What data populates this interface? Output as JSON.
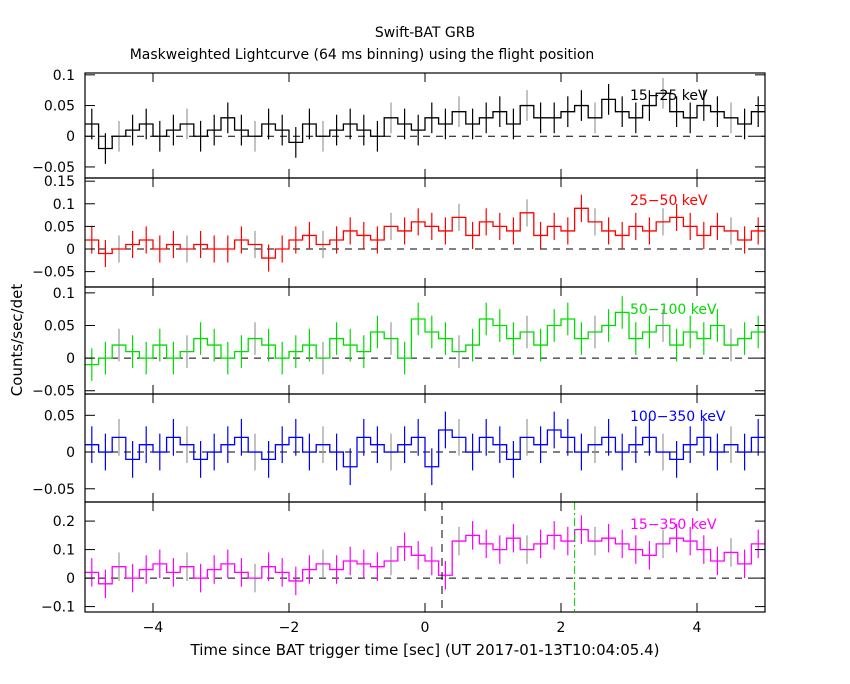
{
  "chart_data": {
    "type": "line",
    "title": "Swift-BAT GRB",
    "subtitle": "Maskweighted Lightcurve (64 ms binning) using the flight position",
    "xlabel": "Time since BAT trigger time [sec] (UT 2017-01-13T10:04:05.4)",
    "ylabel": "Counts/sec/det",
    "xlim": [
      -5,
      5
    ],
    "xticks": [
      -4,
      -2,
      0,
      2,
      4
    ],
    "xtick_labels": [
      "−4",
      "−2",
      "0",
      "2",
      "4"
    ],
    "bin_width": 0.2,
    "markers": [
      {
        "name": "dashed",
        "x": 0.25,
        "color": "#000000"
      },
      {
        "name": "dash-dot",
        "x": 2.2,
        "color": "#00cc00"
      }
    ],
    "panels": [
      {
        "label": "15−25 keV",
        "color": "#000000",
        "ylim": [
          -0.068,
          0.103
        ],
        "yticks": [
          0.1,
          0.05,
          0,
          -0.05
        ],
        "ytick_labels": [
          "0.1",
          "0.05",
          "0",
          "−0.05"
        ],
        "err": 0.025,
        "values": [
          0.02,
          -0.02,
          0.0,
          0.01,
          0.02,
          0.0,
          0.01,
          0.02,
          0.0,
          0.01,
          0.03,
          0.01,
          0.0,
          0.02,
          0.01,
          -0.01,
          0.02,
          0.0,
          0.01,
          0.02,
          0.01,
          0.0,
          0.03,
          0.02,
          0.01,
          0.03,
          0.02,
          0.04,
          0.02,
          0.03,
          0.04,
          0.02,
          0.05,
          0.03,
          0.03,
          0.04,
          0.05,
          0.03,
          0.06,
          0.04,
          0.03,
          0.05,
          0.07,
          0.04,
          0.03,
          0.05,
          0.04,
          0.03,
          0.02,
          0.04
        ]
      },
      {
        "label": "25−50 keV",
        "color": "#ff0000",
        "ylim": [
          -0.084,
          0.157
        ],
        "yticks": [
          0.15,
          0.1,
          0.05,
          0,
          -0.05
        ],
        "ytick_labels": [
          "0.15",
          "0.1",
          "0.05",
          "0",
          "−0.05"
        ],
        "err": 0.03,
        "values": [
          0.02,
          -0.01,
          0.0,
          0.01,
          0.02,
          0.0,
          0.01,
          0.0,
          0.01,
          0.0,
          0.0,
          0.02,
          0.01,
          -0.02,
          0.0,
          0.02,
          0.03,
          0.01,
          0.02,
          0.04,
          0.03,
          0.02,
          0.05,
          0.04,
          0.06,
          0.05,
          0.04,
          0.07,
          0.03,
          0.06,
          0.05,
          0.04,
          0.08,
          0.03,
          0.05,
          0.04,
          0.09,
          0.06,
          0.04,
          0.03,
          0.05,
          0.04,
          0.06,
          0.07,
          0.05,
          0.03,
          0.05,
          0.04,
          0.02,
          0.04
        ]
      },
      {
        "label": "50−100 keV",
        "color": "#00dd00",
        "ylim": [
          -0.055,
          0.109
        ],
        "yticks": [
          0.1,
          0.05,
          0,
          -0.05
        ],
        "ytick_labels": [
          "0.1",
          "0.05",
          "0",
          "−0.05"
        ],
        "err": 0.025,
        "values": [
          -0.01,
          0.0,
          0.02,
          0.01,
          0.0,
          0.02,
          0.0,
          0.01,
          0.03,
          0.02,
          0.0,
          0.01,
          0.03,
          0.02,
          0.0,
          0.01,
          0.02,
          0.0,
          0.03,
          0.02,
          0.01,
          0.04,
          0.03,
          0.0,
          0.06,
          0.04,
          0.03,
          0.01,
          0.02,
          0.06,
          0.05,
          0.03,
          0.04,
          0.02,
          0.05,
          0.06,
          0.03,
          0.04,
          0.05,
          0.07,
          0.03,
          0.04,
          0.05,
          0.02,
          0.04,
          0.03,
          0.05,
          0.02,
          0.03,
          0.04
        ]
      },
      {
        "label": "100−350 keV",
        "color": "#0000ff",
        "ylim": [
          -0.068,
          0.079
        ],
        "yticks": [
          0.05,
          0,
          -0.05
        ],
        "ytick_labels": [
          "0.05",
          "0",
          "−0.05"
        ],
        "err": 0.025,
        "values": [
          0.01,
          0.0,
          0.02,
          -0.01,
          0.01,
          0.0,
          0.02,
          0.01,
          -0.01,
          0.0,
          0.01,
          0.02,
          0.0,
          -0.01,
          0.01,
          0.02,
          0.0,
          0.01,
          0.0,
          -0.02,
          0.02,
          0.01,
          0.0,
          0.01,
          0.02,
          -0.02,
          0.03,
          0.02,
          0.0,
          0.02,
          0.01,
          -0.01,
          0.02,
          0.01,
          0.03,
          0.02,
          0.0,
          0.01,
          0.02,
          0.0,
          0.01,
          0.02,
          0.0,
          -0.01,
          0.01,
          0.02,
          0.0,
          0.01,
          0.0,
          0.02
        ]
      },
      {
        "label": "15−350 keV",
        "color": "#ff00ff",
        "ylim": [
          -0.119,
          0.267
        ],
        "yticks": [
          0.2,
          0.1,
          0,
          -0.1
        ],
        "ytick_labels": [
          "0.2",
          "0.1",
          "0",
          "−0.1"
        ],
        "err": 0.05,
        "values": [
          0.02,
          -0.02,
          0.04,
          0.0,
          0.03,
          0.05,
          0.02,
          0.04,
          0.0,
          0.03,
          0.05,
          0.02,
          0.0,
          0.04,
          0.02,
          -0.01,
          0.03,
          0.05,
          0.03,
          0.06,
          0.05,
          0.04,
          0.06,
          0.11,
          0.08,
          0.06,
          0.01,
          0.13,
          0.15,
          0.12,
          0.1,
          0.14,
          0.1,
          0.12,
          0.15,
          0.13,
          0.17,
          0.13,
          0.14,
          0.12,
          0.1,
          0.08,
          0.12,
          0.14,
          0.13,
          0.1,
          0.06,
          0.09,
          0.05,
          0.12
        ]
      }
    ]
  }
}
